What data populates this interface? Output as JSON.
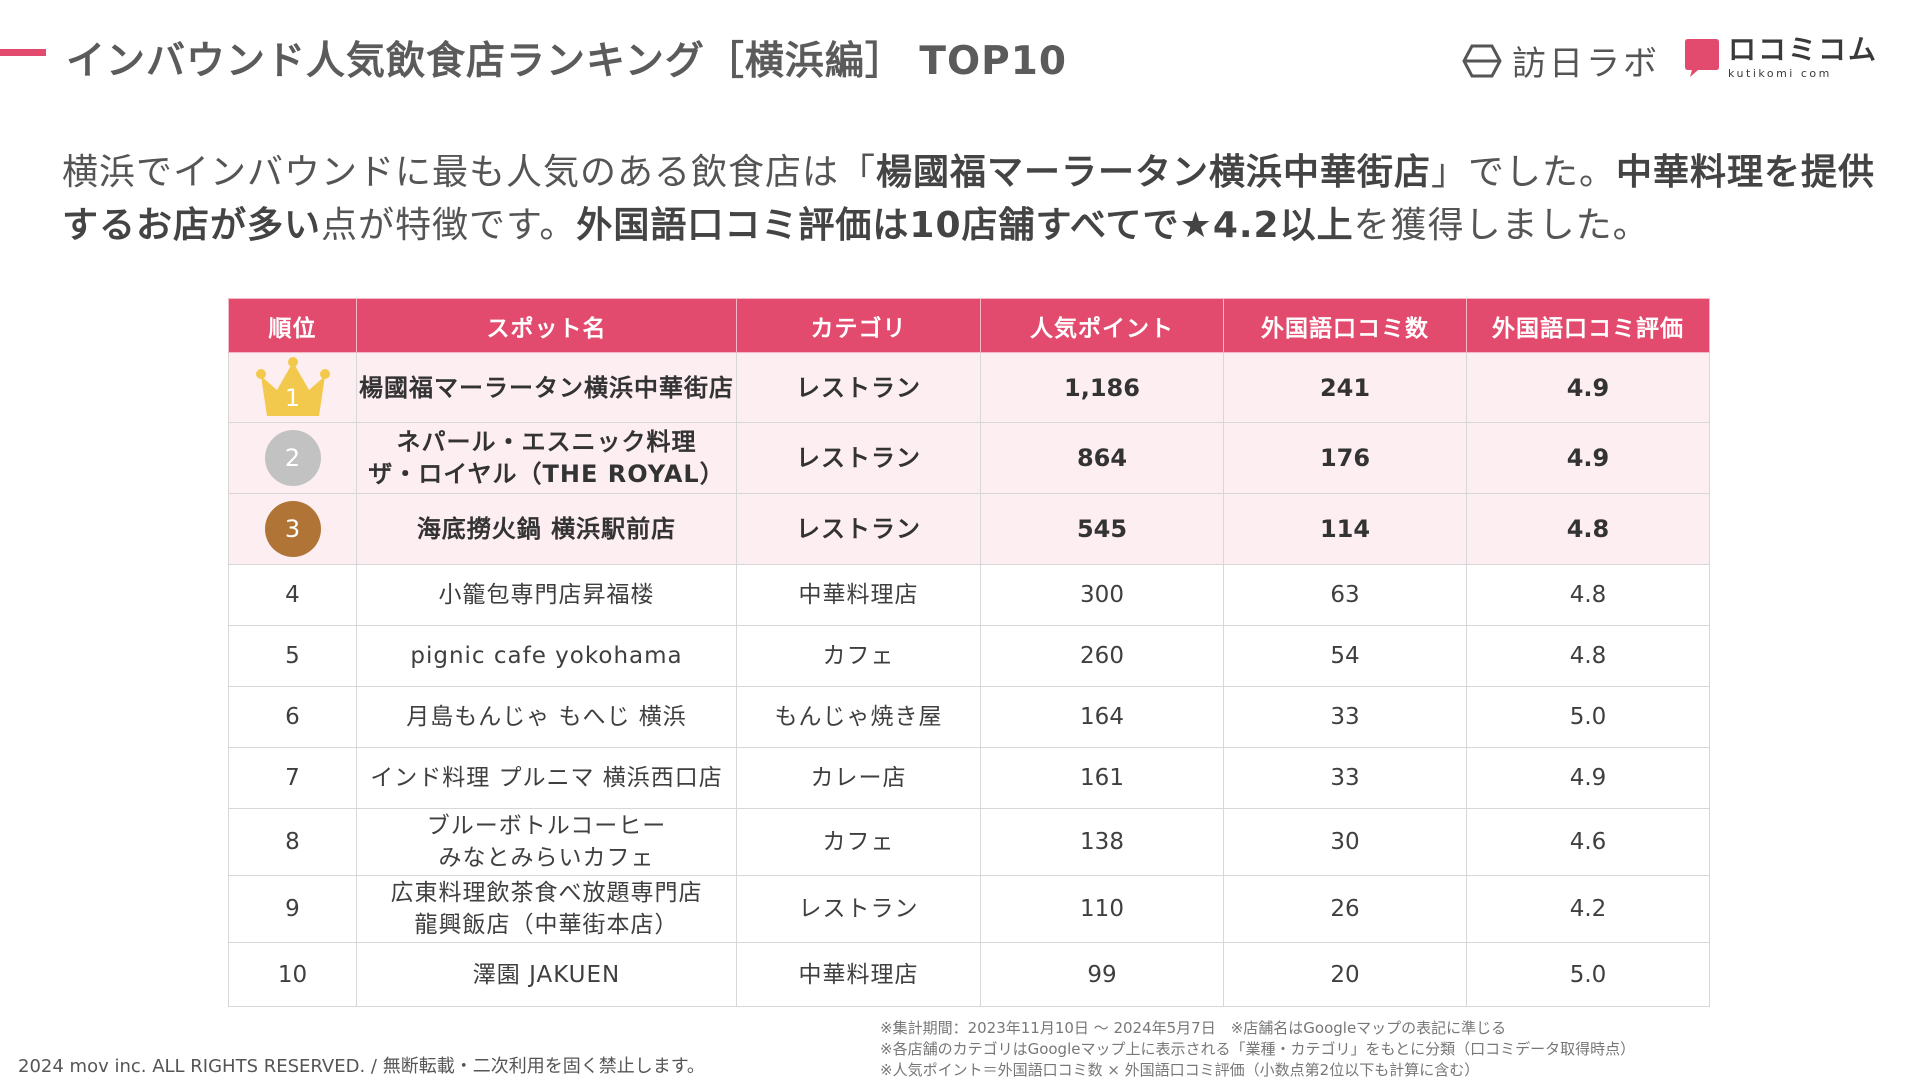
{
  "header": {
    "title": "インバウンド人気飲食店ランキング［横浜編］ TOP10",
    "logo_houn_text": "訪日ラボ",
    "logo_kuchi_main": "ロコミコム",
    "logo_kuchi_sub": "kutikomi com"
  },
  "lead": {
    "p1": "横浜でインバウンドに最も人気のある飲食店は「",
    "b1": "楊國福マーラータン横浜中華街店",
    "p2": "」でした。",
    "b2": "中華料理を提供するお店が多い",
    "p3": "点が特徴です。",
    "b3": "外国語口コミ評価は10店舗すべてで★4.2以上",
    "p4": "を獲得しました。"
  },
  "table": {
    "headers": [
      "順位",
      "スポット名",
      "カテゴリ",
      "人気ポイント",
      "外国語口コミ数",
      "外国語口コミ評価"
    ],
    "rows": [
      {
        "rank": "1",
        "name_l1": "楊國福マーラータン横浜中華街店",
        "name_l2": "",
        "category": "レストラン",
        "points": "1,186",
        "reviews": "241",
        "rating": "4.9"
      },
      {
        "rank": "2",
        "name_l1": "ネパール・エスニック料理",
        "name_l2": "ザ・ロイヤル（THE ROYAL）",
        "category": "レストラン",
        "points": "864",
        "reviews": "176",
        "rating": "4.9"
      },
      {
        "rank": "3",
        "name_l1": "海底撈火鍋 横浜駅前店",
        "name_l2": "",
        "category": "レストラン",
        "points": "545",
        "reviews": "114",
        "rating": "4.8"
      },
      {
        "rank": "4",
        "name_l1": "小籠包専門店昇福楼",
        "name_l2": "",
        "category": "中華料理店",
        "points": "300",
        "reviews": "63",
        "rating": "4.8"
      },
      {
        "rank": "5",
        "name_l1": "pignic cafe yokohama",
        "name_l2": "",
        "category": "カフェ",
        "points": "260",
        "reviews": "54",
        "rating": "4.8"
      },
      {
        "rank": "6",
        "name_l1": "月島もんじゃ もへじ 横浜",
        "name_l2": "",
        "category": "もんじゃ焼き屋",
        "points": "164",
        "reviews": "33",
        "rating": "5.0"
      },
      {
        "rank": "7",
        "name_l1": "インド料理 プルニマ 横浜西口店",
        "name_l2": "",
        "category": "カレー店",
        "points": "161",
        "reviews": "33",
        "rating": "4.9"
      },
      {
        "rank": "8",
        "name_l1": "ブルーボトルコーヒー",
        "name_l2": "みなとみらいカフェ",
        "category": "カフェ",
        "points": "138",
        "reviews": "30",
        "rating": "4.6"
      },
      {
        "rank": "9",
        "name_l1": "広東料理飲茶食べ放題専門店",
        "name_l2": "龍興飯店（中華街本店）",
        "category": "レストラン",
        "points": "110",
        "reviews": "26",
        "rating": "4.2"
      },
      {
        "rank": "10",
        "name_l1": "澤園 JAKUEN",
        "name_l2": "",
        "category": "中華料理店",
        "points": "99",
        "reviews": "20",
        "rating": "5.0"
      }
    ]
  },
  "footer": {
    "copyright": "2024 mov inc. ALL RIGHTS RESERVED. / 無断転載・二次利用を固く禁止します。",
    "note1": "※集計期間：2023年11月10日 〜 2024年5月7日　※店舗名はGoogleマップの表記に準じる",
    "note2": "※各店舗のカテゴリはGoogleマップ上に表示される「業種・カテゴリ」をもとに分類（口コミデータ取得時点）",
    "note3": "※人気ポイント＝外国語口コミ数 × 外国語口コミ評価（小数点第2位以下も計算に含む）"
  },
  "colors": {
    "accent": "#e24a6e",
    "top_row_bg": "#fdeef2",
    "gold": "#f2c94c",
    "silver": "#c2c2c2",
    "bronze": "#b07436"
  },
  "icons": [
    "houn-lab-logo-icon",
    "kutikomi-logo-icon",
    "gold-crown-icon",
    "silver-medal-icon",
    "bronze-medal-icon"
  ]
}
